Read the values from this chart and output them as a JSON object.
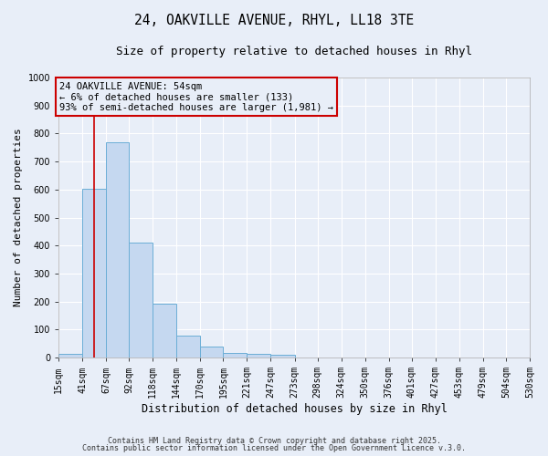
{
  "title": "24, OAKVILLE AVENUE, RHYL, LL18 3TE",
  "subtitle": "Size of property relative to detached houses in Rhyl",
  "xlabel": "Distribution of detached houses by size in Rhyl",
  "ylabel": "Number of detached properties",
  "bin_edges": [
    15,
    41,
    67,
    92,
    118,
    144,
    170,
    195,
    221,
    247,
    273,
    298,
    324,
    350,
    376,
    401,
    427,
    453,
    479,
    504,
    530
  ],
  "bar_heights": [
    15,
    603,
    770,
    412,
    193,
    79,
    38,
    18,
    15,
    10,
    0,
    0,
    0,
    0,
    0,
    0,
    0,
    0,
    0,
    0
  ],
  "bar_color": "#c5d8f0",
  "bar_edgecolor": "#6baed6",
  "bar_linewidth": 0.7,
  "property_size": 54,
  "red_line_color": "#cc0000",
  "annotation_line1": "24 OAKVILLE AVENUE: 54sqm",
  "annotation_line2": "← 6% of detached houses are smaller (133)",
  "annotation_line3": "93% of semi-detached houses are larger (1,981) →",
  "annotation_box_edgecolor": "#cc0000",
  "annotation_fontsize": 7.5,
  "ylim": [
    0,
    1000
  ],
  "yticks": [
    0,
    100,
    200,
    300,
    400,
    500,
    600,
    700,
    800,
    900,
    1000
  ],
  "bg_color": "#e8eef8",
  "grid_color": "#ffffff",
  "title_fontsize": 10.5,
  "subtitle_fontsize": 9,
  "xlabel_fontsize": 8.5,
  "ylabel_fontsize": 8,
  "tick_fontsize": 7,
  "footer_line1": "Contains HM Land Registry data © Crown copyright and database right 2025.",
  "footer_line2": "Contains public sector information licensed under the Open Government Licence v.3.0."
}
